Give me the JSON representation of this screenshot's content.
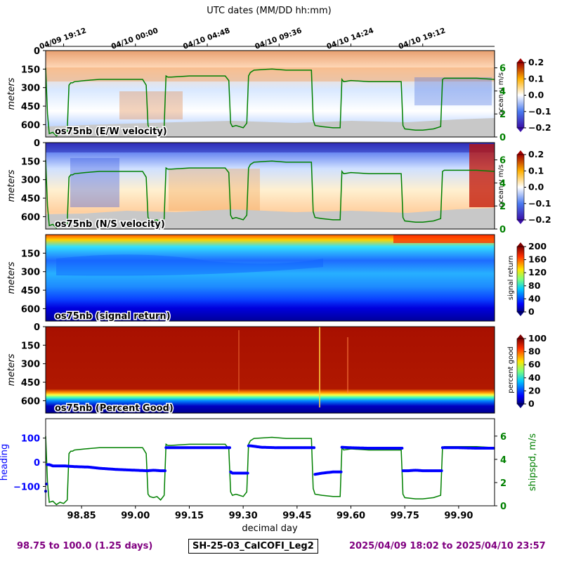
{
  "top_axis_title": "UTC dates (MM/DD hh:mm)",
  "top_ticks": [
    {
      "x": 98.8,
      "label": "04/09 19:12"
    },
    {
      "x": 99.0,
      "label": "04/10 00:00"
    },
    {
      "x": 99.2,
      "label": "04/10 04:48"
    },
    {
      "x": 99.4,
      "label": "04/10 09:36"
    },
    {
      "x": 99.6,
      "label": "04/10 14:24"
    },
    {
      "x": 99.8,
      "label": "04/10 19:12"
    }
  ],
  "footer": {
    "left": "98.75 to 100.0 (1.25 days)",
    "center": "SH-25-03_CalCOFI_Leg2",
    "right": "2025/04/09 18:02 to 2025/04/10 23:57"
  },
  "colors": {
    "ship_speed": "#008000",
    "heading": "#0000ff",
    "footer_text": "#800080",
    "bottom_mask": "#c8c8c8"
  },
  "chart_data": [
    {
      "type": "heatmap",
      "label": "os75nb (E/W velocity)",
      "ylabel": "meters",
      "yticks": [
        0,
        150,
        300,
        450,
        600
      ],
      "ylim": [
        700,
        0
      ],
      "colorbar": {
        "label": "ocean u m/s",
        "colormap": "blue-white-red",
        "range": [
          -0.2,
          0.2
        ],
        "ticks": [
          "0.2",
          "0.1",
          "0.0",
          "−0.1",
          "−0.2"
        ]
      },
      "right_axis": {
        "ticks": [
          "6",
          "4",
          "2",
          "0"
        ],
        "range": [
          0,
          7.5
        ]
      }
    },
    {
      "type": "heatmap",
      "label": "os75nb (N/S velocity)",
      "ylabel": "meters",
      "yticks": [
        0,
        150,
        300,
        450,
        600
      ],
      "ylim": [
        700,
        0
      ],
      "colorbar": {
        "label": "ocean v m/s",
        "colormap": "blue-white-red",
        "range": [
          -0.2,
          0.2
        ],
        "ticks": [
          "0.2",
          "0.1",
          "0.0",
          "−0.1",
          "−0.2"
        ]
      },
      "right_axis": {
        "ticks": [
          "6",
          "4",
          "2",
          "0"
        ],
        "range": [
          0,
          7.5
        ]
      }
    },
    {
      "type": "heatmap",
      "label": "os75nb (signal return)",
      "ylabel": "meters",
      "yticks": [
        150,
        300,
        450,
        600
      ],
      "ylim": [
        700,
        0
      ],
      "colorbar": {
        "label": "signal return",
        "colormap": "jet",
        "range": [
          0,
          200
        ],
        "ticks": [
          "200",
          "160",
          "120",
          "80",
          "40",
          "0"
        ]
      }
    },
    {
      "type": "heatmap",
      "label": "os75nb (Percent Good)",
      "ylabel": "meters",
      "yticks": [
        0,
        150,
        300,
        450,
        600
      ],
      "ylim": [
        700,
        0
      ],
      "colorbar": {
        "label": "percent good",
        "colormap": "jet",
        "range": [
          0,
          100
        ],
        "ticks": [
          "100",
          "80",
          "60",
          "40",
          "20",
          "0"
        ]
      }
    },
    {
      "type": "line",
      "xlabel": "decimal day",
      "xlim": [
        98.75,
        100.0
      ],
      "xticks": [
        "98.85",
        "99.00",
        "99.15",
        "99.30",
        "99.45",
        "99.60",
        "99.75",
        "99.90"
      ],
      "xtick_values": [
        98.85,
        99.0,
        99.15,
        99.3,
        99.45,
        99.6,
        99.75,
        99.9
      ],
      "left_axis": {
        "label": "heading",
        "ticks": [
          "100",
          "0",
          "−100"
        ],
        "tick_values": [
          100,
          0,
          -100
        ],
        "range": [
          -180,
          180
        ]
      },
      "right_axis": {
        "label": "shipspd, m/s",
        "ticks": [
          "6",
          "4",
          "2",
          "0"
        ],
        "tick_values": [
          6,
          4,
          2,
          0
        ],
        "range": [
          0,
          7.5
        ]
      },
      "ship_speed": {
        "x": [
          98.75,
          98.755,
          98.76,
          98.77,
          98.78,
          98.79,
          98.8,
          98.81,
          98.815,
          98.82,
          98.825,
          98.83,
          98.86,
          98.9,
          98.95,
          99.0,
          99.02,
          99.03,
          99.035,
          99.04,
          99.05,
          99.06,
          99.07,
          99.08,
          99.085,
          99.09,
          99.1,
          99.15,
          99.2,
          99.25,
          99.26,
          99.265,
          99.27,
          99.28,
          99.29,
          99.3,
          99.31,
          99.315,
          99.32,
          99.33,
          99.38,
          99.42,
          99.47,
          99.49,
          99.495,
          99.5,
          99.52,
          99.55,
          99.57,
          99.575,
          99.58,
          99.6,
          99.65,
          99.7,
          99.74,
          99.745,
          99.75,
          99.78,
          99.8,
          99.83,
          99.85,
          99.855,
          99.86,
          99.87,
          99.9,
          99.95,
          100.0
        ],
        "y": [
          6.0,
          2.0,
          0.3,
          0.4,
          0.1,
          0.3,
          0.2,
          0.5,
          4.5,
          4.7,
          4.7,
          4.8,
          4.9,
          5.0,
          5.0,
          5.0,
          5.0,
          4.5,
          1.0,
          0.8,
          0.7,
          0.8,
          0.5,
          0.9,
          5.3,
          5.2,
          5.2,
          5.3,
          5.3,
          5.3,
          4.9,
          1.2,
          0.9,
          1.0,
          0.9,
          0.8,
          1.2,
          5.3,
          5.6,
          5.8,
          5.9,
          5.8,
          5.8,
          5.8,
          1.5,
          1.0,
          0.9,
          0.8,
          0.8,
          5.0,
          4.8,
          4.9,
          4.8,
          4.8,
          4.8,
          1.0,
          0.7,
          0.6,
          0.6,
          0.7,
          0.9,
          5.0,
          5.1,
          5.1,
          5.1,
          5.1,
          5.0
        ]
      },
      "heading": {
        "x": [
          98.75,
          98.752,
          98.755,
          98.76,
          98.77,
          98.8,
          98.83,
          98.87,
          98.9,
          98.95,
          99.0,
          99.03,
          99.035,
          99.05,
          99.07,
          99.085,
          99.1,
          99.15,
          99.2,
          99.26,
          99.265,
          99.27,
          99.3,
          99.315,
          99.32,
          99.35,
          99.4,
          99.45,
          99.495,
          99.5,
          99.52,
          99.55,
          99.57,
          99.575,
          99.6,
          99.65,
          99.7,
          99.74,
          99.745,
          99.76,
          99.78,
          99.8,
          99.84,
          99.855,
          99.87,
          99.9,
          99.95,
          100.0
        ],
        "y": [
          -120,
          -90,
          -10,
          -10,
          -15,
          -15,
          -18,
          -20,
          -25,
          -30,
          -33,
          -35,
          -35,
          -33,
          -35,
          60,
          60,
          60,
          60,
          60,
          -40,
          -45,
          -45,
          68,
          68,
          62,
          60,
          60,
          60,
          -50,
          -45,
          -40,
          -40,
          62,
          60,
          58,
          58,
          58,
          -35,
          -35,
          -33,
          -35,
          -35,
          60,
          60,
          60,
          58,
          58
        ]
      }
    }
  ]
}
